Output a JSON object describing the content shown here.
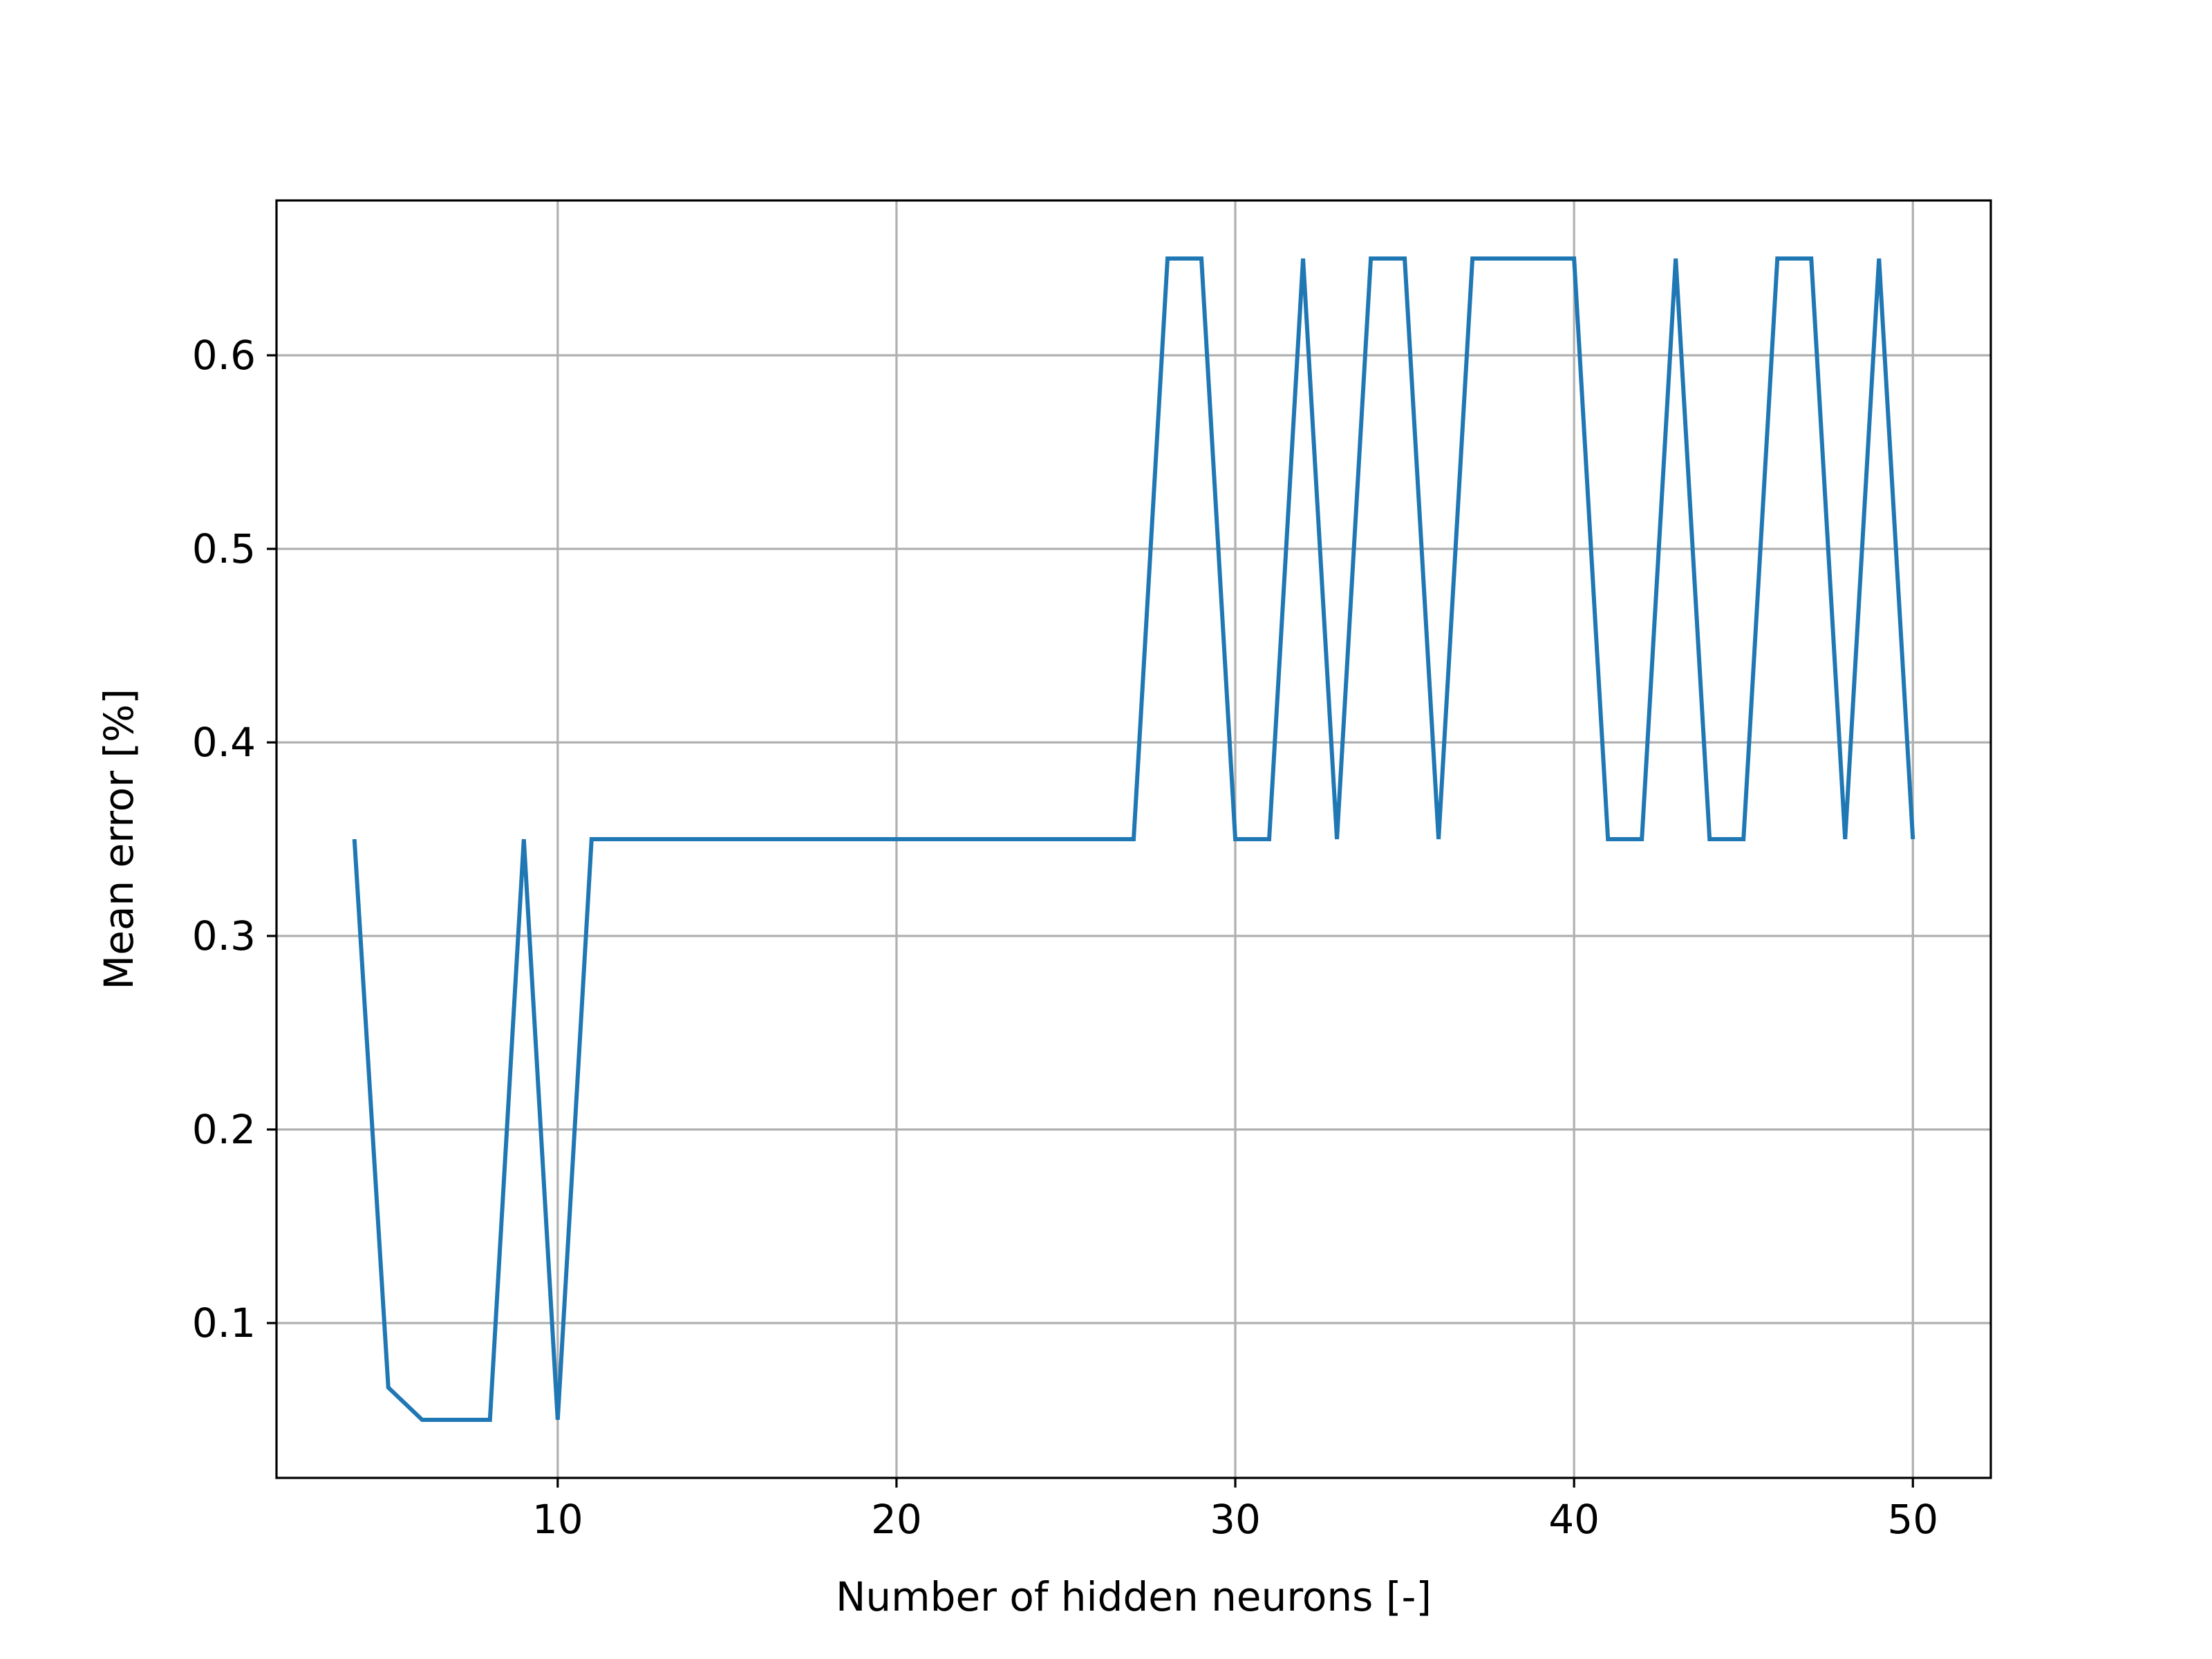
{
  "chart_data": {
    "type": "line",
    "title": "",
    "xlabel": "Number of hidden neurons [-]",
    "ylabel": "Mean error [%]",
    "xlim": [
      1.7,
      52.3
    ],
    "ylim": [
      0.02,
      0.68
    ],
    "xticks": [
      10,
      20,
      30,
      40,
      50
    ],
    "yticks": [
      0.1,
      0.2,
      0.3,
      0.4,
      0.5,
      0.6
    ],
    "xtick_labels": [
      "10",
      "20",
      "30",
      "40",
      "50"
    ],
    "ytick_labels": [
      "0.1",
      "0.2",
      "0.3",
      "0.4",
      "0.5",
      "0.6"
    ],
    "grid": true,
    "legend": "none",
    "series": [
      {
        "color": "#1f77b4",
        "x": [
          4,
          5,
          6,
          7,
          8,
          9,
          10,
          11,
          12,
          13,
          14,
          15,
          16,
          17,
          18,
          19,
          20,
          21,
          22,
          23,
          24,
          25,
          26,
          27,
          28,
          29,
          30,
          31,
          32,
          33,
          34,
          35,
          36,
          37,
          38,
          39,
          40,
          41,
          42,
          43,
          44,
          45,
          46,
          47,
          48,
          49,
          50
        ],
        "y": [
          0.35,
          0.0667,
          0.05,
          0.05,
          0.05,
          0.35,
          0.05,
          0.35,
          0.35,
          0.35,
          0.35,
          0.35,
          0.35,
          0.35,
          0.35,
          0.35,
          0.35,
          0.35,
          0.35,
          0.35,
          0.35,
          0.35,
          0.35,
          0.35,
          0.65,
          0.65,
          0.35,
          0.35,
          0.65,
          0.35,
          0.65,
          0.65,
          0.35,
          0.65,
          0.65,
          0.65,
          0.65,
          0.35,
          0.35,
          0.65,
          0.35,
          0.35,
          0.65,
          0.65,
          0.35,
          0.65,
          0.35
        ]
      }
    ]
  }
}
